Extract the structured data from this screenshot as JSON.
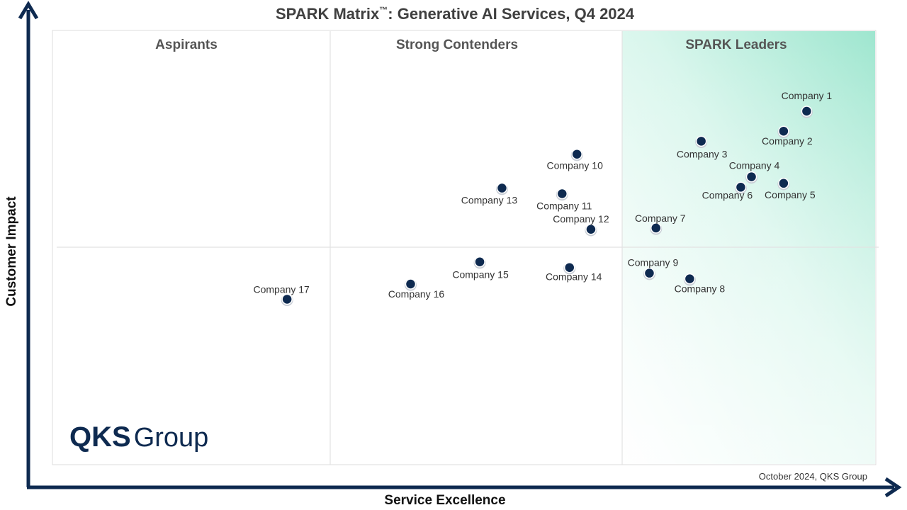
{
  "chart_data": {
    "type": "scatter",
    "title_main": "SPARK Matrix",
    "title_tm": "™",
    "title_rest": ": Generative AI Services, Q4 2024",
    "xlabel": "Service Excellence",
    "ylabel": "Customer Impact",
    "quadrants": [
      "Aspirants",
      "Strong Contenders",
      "SPARK Leaders"
    ],
    "source_note": "October 2024, QKS Group",
    "colors": {
      "point": "#0e2a50",
      "axis": "#0e2a50",
      "leader_gradient": "#9ee6cf",
      "gridline": "#e2e2e2"
    },
    "points": [
      {
        "name": "Company 1",
        "x": 91.6,
        "y": 81.4
      },
      {
        "name": "Company 2",
        "x": 88.8,
        "y": 76.8
      },
      {
        "name": "Company 3",
        "x": 78.8,
        "y": 74.5
      },
      {
        "name": "Company 4",
        "x": 84.9,
        "y": 66.3
      },
      {
        "name": "Company 5",
        "x": 88.8,
        "y": 64.8
      },
      {
        "name": "Company 6",
        "x": 83.6,
        "y": 63.9
      },
      {
        "name": "Company 7",
        "x": 73.3,
        "y": 54.5
      },
      {
        "name": "Company 8",
        "x": 77.4,
        "y": 42.8
      },
      {
        "name": "Company 9",
        "x": 72.5,
        "y": 44.1
      },
      {
        "name": "Company 10",
        "x": 63.7,
        "y": 71.5
      },
      {
        "name": "Company 11",
        "x": 61.9,
        "y": 62.4
      },
      {
        "name": "Company 12",
        "x": 65.4,
        "y": 54.2
      },
      {
        "name": "Company 13",
        "x": 54.6,
        "y": 63.7
      },
      {
        "name": "Company 14",
        "x": 62.8,
        "y": 45.4
      },
      {
        "name": "Company 15",
        "x": 51.9,
        "y": 46.7
      },
      {
        "name": "Company 16",
        "x": 43.5,
        "y": 41.6
      },
      {
        "name": "Company 17",
        "x": 28.5,
        "y": 38.1
      }
    ]
  },
  "logo": {
    "bold": "QKS",
    "light": "Group"
  }
}
